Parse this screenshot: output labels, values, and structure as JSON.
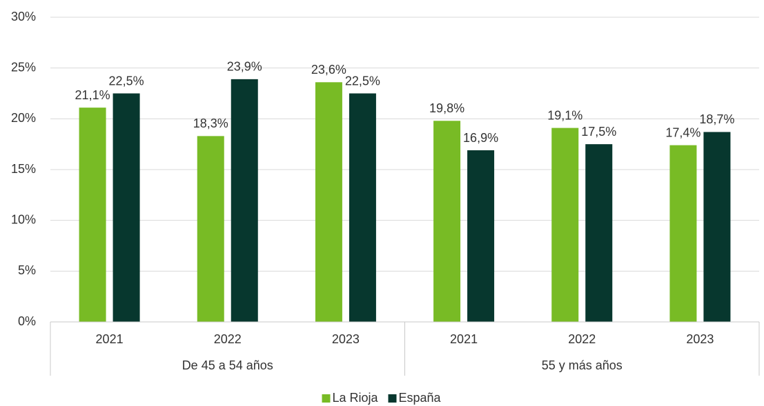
{
  "chart_data": {
    "type": "bar",
    "groups": [
      {
        "name": "De 45 a 54 años",
        "categories": [
          "2021",
          "2022",
          "2023"
        ]
      },
      {
        "name": "55 y más años",
        "categories": [
          "2021",
          "2022",
          "2023"
        ]
      }
    ],
    "series": [
      {
        "name": "La Rioja",
        "color": "#78bb25",
        "values": [
          21.1,
          18.3,
          23.6,
          19.8,
          19.1,
          17.4
        ],
        "value_labels": [
          "21,1%",
          "18,3%",
          "23,6%",
          "19,8%",
          "19,1%",
          "17,4%"
        ]
      },
      {
        "name": "España",
        "color": "#07372e",
        "values": [
          22.5,
          23.9,
          22.5,
          16.9,
          17.5,
          18.7
        ],
        "value_labels": [
          "22,5%",
          "23,9%",
          "22,5%",
          "16,9%",
          "17,5%",
          "18,7%"
        ]
      }
    ],
    "ylim": [
      0,
      30
    ],
    "yticks": [
      {
        "value": 0,
        "label": "0%"
      },
      {
        "value": 5,
        "label": "5%"
      },
      {
        "value": 10,
        "label": "10%"
      },
      {
        "value": 15,
        "label": "15%"
      },
      {
        "value": 20,
        "label": "20%"
      },
      {
        "value": 25,
        "label": "25%"
      },
      {
        "value": 30,
        "label": "30%"
      }
    ],
    "grid": true,
    "legend": "bottom"
  }
}
